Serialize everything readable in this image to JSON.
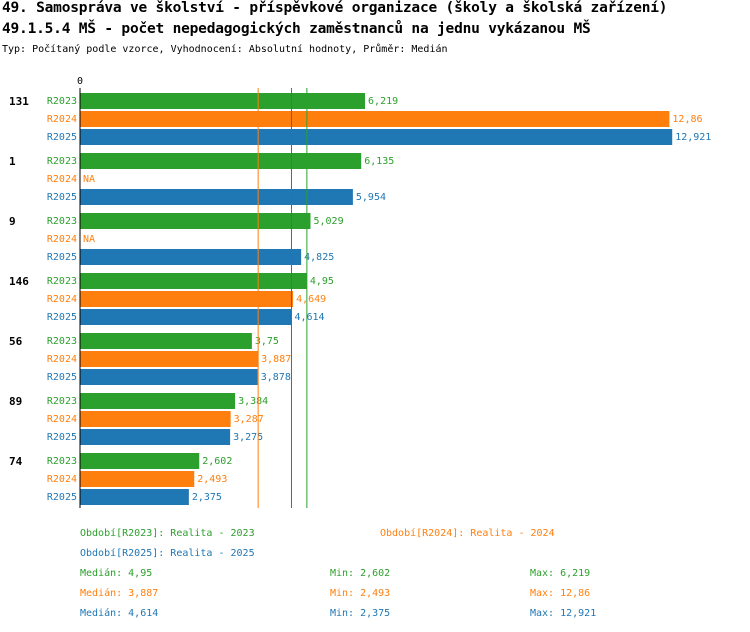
{
  "header": {
    "title_line1": "49. Samospráva ve školství - příspěvkové organizace (školy a školská zařízení)",
    "title_line2": "49.1.5.4 MŠ - počet nepedagogických zaměstnanců na jednu vykázanou MŠ",
    "subtitle": "Typ: Počítaný podle vzorce, Vyhodnocení: Absolutní hodnoty, Průměr: Medián"
  },
  "colors": {
    "R2023": "#2ca02c",
    "R2024": "#ff7f0e",
    "R2025": "#1f77b4"
  },
  "chart_data": {
    "type": "bar",
    "orientation": "horizontal",
    "axis_zero_label": "0",
    "xlim": [
      0,
      13.2
    ],
    "series_names": [
      "R2023",
      "R2024",
      "R2025"
    ],
    "groups": [
      {
        "label": "131",
        "values": [
          6.219,
          12.86,
          12.921
        ],
        "texts": [
          "6,219",
          "12,86",
          "12,921"
        ]
      },
      {
        "label": "1",
        "values": [
          6.135,
          null,
          5.954
        ],
        "texts": [
          "6,135",
          "NA",
          "5,954"
        ]
      },
      {
        "label": "9",
        "values": [
          5.029,
          null,
          4.825
        ],
        "texts": [
          "5,029",
          "NA",
          "4,825"
        ]
      },
      {
        "label": "146",
        "values": [
          4.95,
          4.649,
          4.614
        ],
        "texts": [
          "4,95",
          "4,649",
          "4,614"
        ]
      },
      {
        "label": "56",
        "values": [
          3.75,
          3.887,
          3.878
        ],
        "texts": [
          "3,75",
          "3,887",
          "3,878"
        ]
      },
      {
        "label": "89",
        "values": [
          3.384,
          3.287,
          3.275
        ],
        "texts": [
          "3,384",
          "3,287",
          "3,275"
        ]
      },
      {
        "label": "74",
        "values": [
          2.602,
          2.493,
          2.375
        ],
        "texts": [
          "2,602",
          "2,493",
          "2,375"
        ]
      }
    ],
    "median_lines": [
      {
        "series": "R2023",
        "value": 4.95
      },
      {
        "series": "R2024",
        "value": 3.887
      },
      {
        "series": "R2025",
        "value": 4.614
      }
    ]
  },
  "legend": {
    "r2023": "Období[R2023]: Realita - 2023",
    "r2024": "Období[R2024]: Realita - 2024",
    "r2025": "Období[R2025]: Realita - 2025"
  },
  "stats": [
    {
      "median": "Medián: 4,95",
      "min": "Min: 2,602",
      "max": "Max: 6,219"
    },
    {
      "median": "Medián: 3,887",
      "min": "Min: 2,493",
      "max": "Max: 12,86"
    },
    {
      "median": "Medián: 4,614",
      "min": "Min: 2,375",
      "max": "Max: 12,921"
    }
  ]
}
